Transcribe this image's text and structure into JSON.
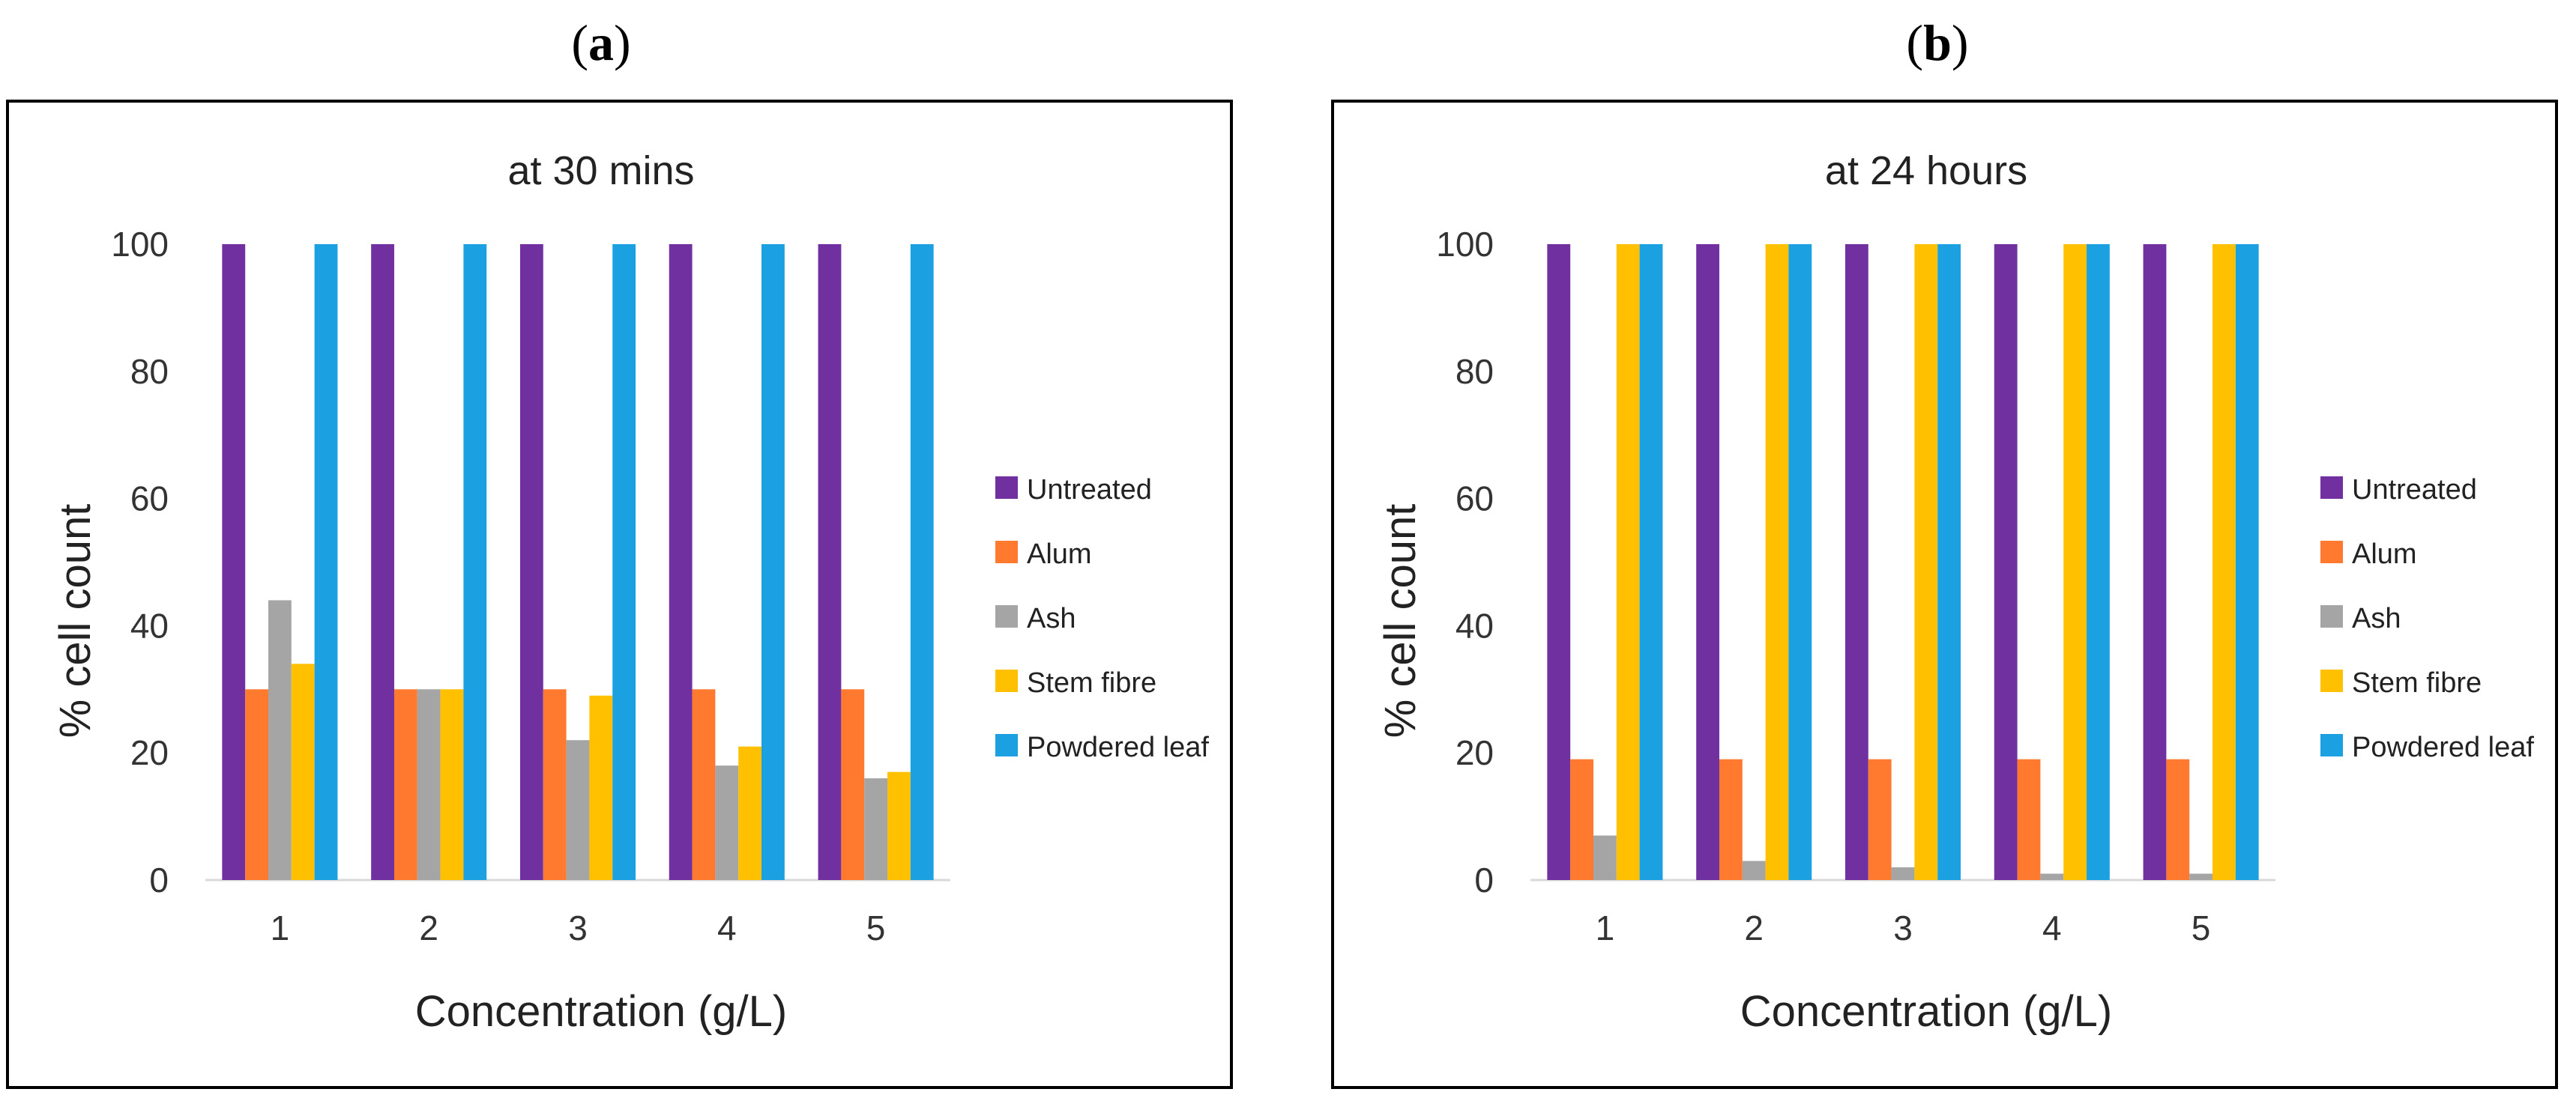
{
  "panels": [
    {
      "label_open": "(",
      "label_letter": "a",
      "label_close": ")",
      "chart_data": {
        "type": "bar",
        "title": "at 30 mins",
        "xlabel": "Concentration (g/L)",
        "ylabel": "% cell count",
        "ylim": [
          0,
          100
        ],
        "yticks": [
          "0",
          "20",
          "40",
          "60",
          "80",
          "100"
        ],
        "categories": [
          "1",
          "2",
          "3",
          "4",
          "5"
        ],
        "grid": false,
        "legend_position": "right",
        "series": [
          {
            "name": "Untreated",
            "color": "#7030A0",
            "values": [
              100,
              100,
              100,
              100,
              100
            ]
          },
          {
            "name": "Alum",
            "color": "#FF7A2F",
            "values": [
              30,
              30,
              30,
              30,
              30
            ]
          },
          {
            "name": "Ash",
            "color": "#A5A5A5",
            "values": [
              44,
              30,
              22,
              18,
              16
            ]
          },
          {
            "name": "Stem fibre",
            "color": "#FFC000",
            "values": [
              34,
              30,
              29,
              21,
              17
            ]
          },
          {
            "name": "Powdered leaf",
            "color": "#1BA1E2",
            "values": [
              100,
              100,
              100,
              100,
              100
            ]
          }
        ]
      }
    },
    {
      "label_open": "(",
      "label_letter": "b",
      "label_close": ")",
      "chart_data": {
        "type": "bar",
        "title": "at 24 hours",
        "xlabel": "Concentration (g/L)",
        "ylabel": "% cell count",
        "ylim": [
          0,
          100
        ],
        "yticks": [
          "0",
          "20",
          "40",
          "60",
          "80",
          "100"
        ],
        "categories": [
          "1",
          "2",
          "3",
          "4",
          "5"
        ],
        "grid": false,
        "legend_position": "right",
        "series": [
          {
            "name": "Untreated",
            "color": "#7030A0",
            "values": [
              100,
              100,
              100,
              100,
              100
            ]
          },
          {
            "name": "Alum",
            "color": "#FF7A2F",
            "values": [
              19,
              19,
              19,
              19,
              19
            ]
          },
          {
            "name": "Ash",
            "color": "#A5A5A5",
            "values": [
              7,
              3,
              2,
              1,
              1
            ]
          },
          {
            "name": "Stem fibre",
            "color": "#FFC000",
            "values": [
              100,
              100,
              100,
              100,
              100
            ]
          },
          {
            "name": "Powdered leaf",
            "color": "#1BA1E2",
            "values": [
              100,
              100,
              100,
              100,
              100
            ]
          }
        ]
      }
    }
  ]
}
